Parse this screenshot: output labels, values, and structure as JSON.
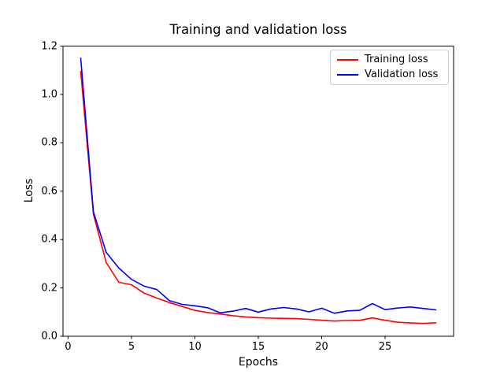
{
  "chart_data": {
    "type": "line",
    "title": "Training and validation loss",
    "xlabel": "Epochs",
    "ylabel": "Loss",
    "xlim": [
      -0.4,
      30.4
    ],
    "ylim": [
      0,
      1.2
    ],
    "grid": false,
    "legend_position": "upper right",
    "x_ticks": [
      0,
      5,
      10,
      15,
      20,
      25
    ],
    "x_tick_labels": [
      "0",
      "5",
      "10",
      "15",
      "20",
      "25"
    ],
    "y_ticks": [
      0,
      0.2,
      0.4,
      0.6,
      0.8,
      1.0,
      1.2
    ],
    "y_tick_labels": [
      "0.0",
      "0.2",
      "0.4",
      "0.6",
      "0.8",
      "1.0",
      "1.2"
    ],
    "x": [
      1,
      2,
      3,
      4,
      5,
      6,
      7,
      8,
      9,
      10,
      11,
      12,
      13,
      14,
      15,
      16,
      17,
      18,
      19,
      20,
      21,
      22,
      23,
      24,
      25,
      26,
      27,
      28,
      29
    ],
    "series": [
      {
        "name": "Training loss",
        "color": "#ff0000",
        "data_name": "training-loss-line",
        "values": [
          1.095,
          0.505,
          0.305,
          0.223,
          0.213,
          0.178,
          0.158,
          0.139,
          0.123,
          0.107,
          0.098,
          0.092,
          0.085,
          0.08,
          0.077,
          0.075,
          0.074,
          0.073,
          0.07,
          0.066,
          0.063,
          0.065,
          0.066,
          0.076,
          0.066,
          0.058,
          0.055,
          0.053,
          0.056
        ]
      },
      {
        "name": "Validation loss",
        "color": "#0000ff",
        "data_name": "validation-loss-line",
        "values": [
          1.15,
          0.515,
          0.347,
          0.282,
          0.235,
          0.207,
          0.193,
          0.147,
          0.132,
          0.126,
          0.118,
          0.097,
          0.104,
          0.115,
          0.1,
          0.113,
          0.119,
          0.113,
          0.101,
          0.116,
          0.095,
          0.105,
          0.107,
          0.135,
          0.11,
          0.117,
          0.121,
          0.115,
          0.109
        ]
      }
    ]
  }
}
